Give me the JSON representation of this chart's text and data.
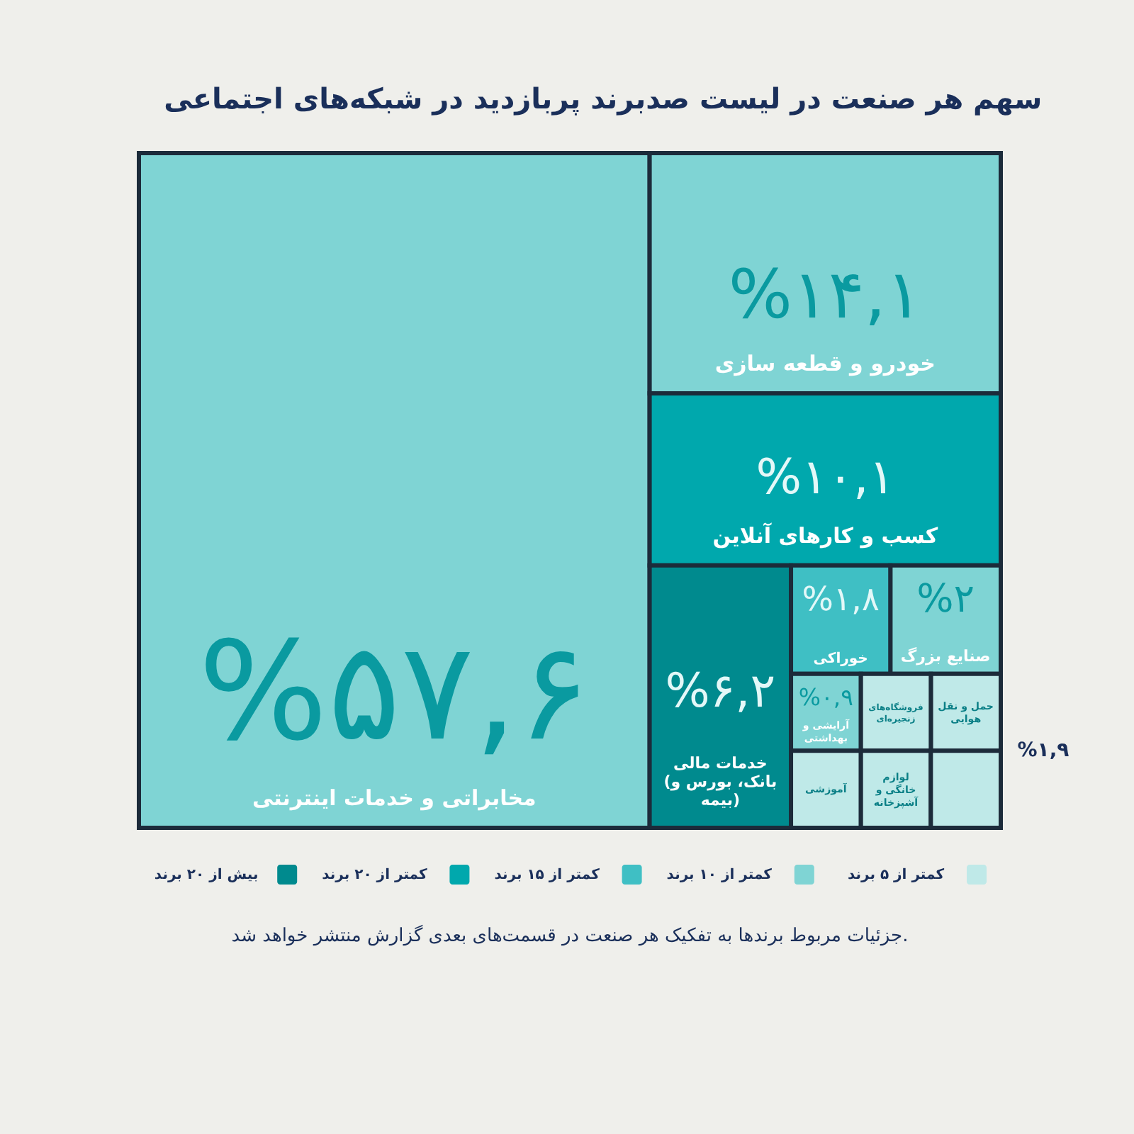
{
  "chart_data": {
    "type": "other",
    "title": "سهم هر صنعت در لیست صدبرند پربازدید در شبکه‌های اجتماعی",
    "categories": [
      "مخابراتی و خدمات اینترنتی",
      "خودرو و قطعه سازی",
      "کسب و کارهای آنلاین",
      "خدمات مالی (بانک، بورس و بیمه)",
      "صنایع بزرگ",
      "خوراکی",
      "آرایشی و بهداشتی",
      "آموزشی",
      "حمل و نقل هوایی",
      "فروشگاه‌های زنجیره‌ای",
      "لوازم خانگی و آشپزخانه",
      null
    ],
    "colors": [
      "#7fd4d4",
      "#7fd4d4",
      "#00a8ad",
      "#008a8e",
      "#7fd4d4",
      "#3fbfc4",
      "#7fd4d4",
      "#bfe9e8",
      "#bfe9e8",
      "#bfe9e8",
      "#bfe9e8",
      "#bfe9e8"
    ],
    "series": [
      {
        "name": "کمتر از ۵ برند",
        "color": "#bfe9e8",
        "values": [
          null,
          null,
          null,
          null,
          null,
          null,
          null,
          null,
          null,
          null,
          null,
          null
        ],
        "value_labels": [
          null,
          null,
          null,
          null,
          null,
          null,
          null,
          null,
          null,
          null,
          null,
          null
        ]
      },
      {
        "name": "کمتر از ۱۰ برند",
        "color": "#7fd4d4",
        "values": [
          57.6,
          14.1,
          null,
          null,
          2,
          null,
          0.9,
          null,
          null,
          null,
          null,
          null
        ],
        "value_labels": [
          "%۵۷,۶",
          "%۱۴,۱",
          null,
          null,
          "%۲",
          null,
          "%۰,۹",
          null,
          null,
          null,
          null,
          null
        ]
      },
      {
        "name": "کمتر از ۱۵ برند",
        "color": "#3fbfc4",
        "values": [
          null,
          null,
          null,
          null,
          null,
          1.8,
          null,
          null,
          null,
          null,
          null,
          null
        ],
        "value_labels": [
          null,
          null,
          null,
          null,
          null,
          "%۱,۸",
          null,
          null,
          null,
          null,
          null,
          null
        ]
      },
      {
        "name": "کمتر از ۲۰ برند",
        "color": "#00a8ad",
        "values": [
          null,
          null,
          10.1,
          null,
          null,
          null,
          null,
          null,
          null,
          null,
          null,
          null
        ],
        "value_labels": [
          null,
          null,
          "%۱۰,۱",
          null,
          null,
          null,
          null,
          null,
          null,
          null,
          null,
          null
        ]
      },
      {
        "name": "بیش از ۲۰ برند",
        "color": "#008a8e",
        "values": [
          null,
          null,
          null,
          6.2,
          null,
          null,
          null,
          null,
          null,
          null,
          null,
          null
        ],
        "value_labels": [
          null,
          null,
          null,
          "%۶,۲",
          null,
          null,
          null,
          null,
          null,
          null,
          null,
          null
        ]
      }
    ],
    "legend": "bottom",
    "annotations": [
      "%۱,۹",
      "جزئیات مربوط برندها به تفکیک هر صنعت در قسمت‌های بعدی گزارش منتشر خواهد شد."
    ]
  }
}
